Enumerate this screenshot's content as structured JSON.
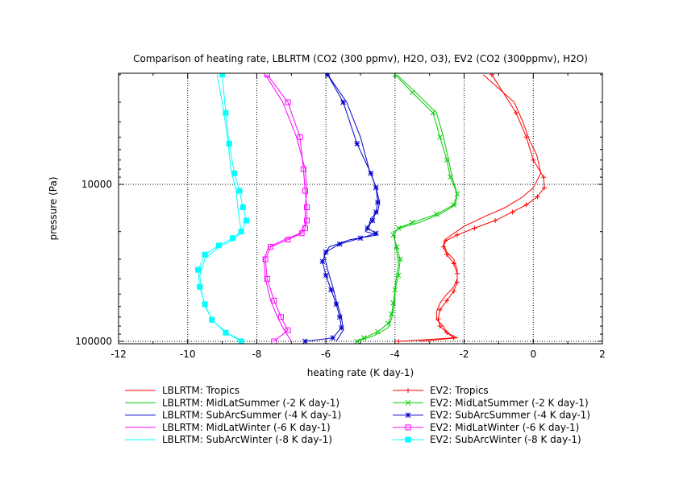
{
  "chart_data": {
    "type": "line",
    "title": "Comparison of heating rate, LBLRTM (CO2 (300 ppmv), H2O, O3), EV2 (CO2 (300ppmv), H2O)",
    "xlabel": "heating rate (K day-1)",
    "ylabel": "pressure (Pa)",
    "xlim": [
      -12,
      2
    ],
    "ylim": [
      100000,
      2000
    ],
    "y_scale": "log",
    "y_inverted": true,
    "grid": "dotted at x=-10,-8,-6,-4,-2,0 and y=10000",
    "x_ticks": [
      "-12",
      "-10",
      "-8",
      "-6",
      "-4",
      "-2",
      "0",
      "2"
    ],
    "y_ticks": [
      "10000",
      "100000"
    ],
    "legend_position": "bottom",
    "series": [
      {
        "name": "LBLRTM: Tropics",
        "color": "#ff0000",
        "marker": "none",
        "x": [
          -1.45,
          -0.55,
          -0.3,
          -0.1,
          0.1,
          0.22,
          0.0,
          -0.3,
          -0.8,
          -1.4,
          -2.0,
          -2.5,
          -2.6,
          -2.5,
          -2.3,
          -2.2,
          -2.2,
          -2.3,
          -2.5,
          -2.7,
          -2.8,
          -2.8,
          -2.6,
          -2.5,
          -2.2,
          -3.3
        ],
        "y": [
          2000,
          3000,
          4000,
          5300,
          6500,
          8500,
          10500,
          12000,
          14000,
          16000,
          18500,
          22000,
          24000,
          27000,
          30000,
          35000,
          40000,
          45000,
          50000,
          57000,
          65000,
          73000,
          80000,
          88000,
          95000,
          100000
        ]
      },
      {
        "name": "LBLRTM: MidLatSummer (-2 K day-1)",
        "color": "#00cc00",
        "marker": "none",
        "x": [
          -3.95,
          -3.4,
          -2.8,
          -2.6,
          -2.45,
          -2.35,
          -2.2,
          -2.25,
          -2.7,
          -3.3,
          -3.8,
          -4.05,
          -4.0,
          -3.95,
          -3.9,
          -3.95,
          -4.0,
          -4.0,
          -4.05,
          -4.1,
          -4.2,
          -4.6,
          -5.1
        ],
        "y": [
          2000,
          2600,
          3500,
          5000,
          7000,
          9000,
          11500,
          13500,
          15500,
          17500,
          18800,
          20000,
          23000,
          27000,
          32000,
          38000,
          45000,
          53000,
          62000,
          72000,
          82000,
          92000,
          100000
        ]
      },
      {
        "name": "LBLRTM: SubArcSummer (-4 K day-1)",
        "color": "#0000cc",
        "marker": "none",
        "x": [
          -5.95,
          -5.4,
          -5.0,
          -4.75,
          -4.55,
          -4.45,
          -4.5,
          -4.7,
          -4.75,
          -4.85,
          -4.5,
          -5.3,
          -5.9,
          -6.05,
          -5.95,
          -5.8,
          -5.7,
          -5.55,
          -5.5,
          -5.7
        ],
        "y": [
          2000,
          3000,
          5000,
          8000,
          10500,
          13000,
          15000,
          16500,
          18000,
          20000,
          21000,
          22500,
          25000,
          28000,
          35000,
          45000,
          55000,
          70000,
          85000,
          100000
        ]
      },
      {
        "name": "LBLRTM: MidLatWinter (-6 K day-1)",
        "color": "#ff00ff",
        "marker": "none",
        "x": [
          -7.75,
          -7.25,
          -6.85,
          -6.6,
          -6.55,
          -6.6,
          -6.6,
          -6.75,
          -7.2,
          -7.65,
          -7.8,
          -7.75,
          -7.6,
          -7.4,
          -7.2,
          -7.0
        ],
        "y": [
          2000,
          3000,
          5000,
          8000,
          11000,
          14000,
          18000,
          20500,
          22500,
          25000,
          30000,
          40000,
          55000,
          70000,
          85000,
          100000
        ]
      },
      {
        "name": "LBLRTM: SubArcWinter (-8 K day-1)",
        "color": "#00ffff",
        "marker": "none",
        "x": [
          -9.15,
          -9.0,
          -8.85,
          -8.75,
          -8.6,
          -8.55,
          -8.5,
          -8.45,
          -8.65,
          -9.1,
          -9.5,
          -9.65,
          -9.6,
          -9.5,
          -9.25,
          -8.8,
          -8.4
        ],
        "y": [
          2000,
          3000,
          5000,
          8000,
          11000,
          14000,
          17000,
          20000,
          22500,
          25000,
          30000,
          38000,
          48000,
          60000,
          75000,
          90000,
          100000
        ]
      },
      {
        "name": "EV2: Tropics",
        "color": "#ff0000",
        "marker": "plus",
        "x": [
          -1.2,
          -0.5,
          -0.2,
          0.0,
          0.3,
          0.32,
          0.12,
          -0.2,
          -0.6,
          -1.1,
          -1.7,
          -2.2,
          -2.55,
          -2.6,
          -2.5,
          -2.3,
          -2.2,
          -2.2,
          -2.3,
          -2.5,
          -2.7,
          -2.75,
          -2.7,
          -2.5,
          -2.3,
          -3.9
        ],
        "y": [
          2000,
          3500,
          5000,
          7000,
          9000,
          10500,
          12000,
          13500,
          15000,
          17000,
          19000,
          21000,
          23000,
          25000,
          28000,
          32000,
          37000,
          42000,
          48000,
          55000,
          63000,
          72000,
          80000,
          88000,
          95000,
          100000
        ]
      },
      {
        "name": "EV2: MidLatSummer (-2 K day-1)",
        "color": "#00cc00",
        "marker": "x",
        "x": [
          -4.0,
          -3.5,
          -2.9,
          -2.7,
          -2.5,
          -2.4,
          -2.2,
          -2.3,
          -2.8,
          -3.5,
          -3.9,
          -4.05,
          -3.95,
          -3.85,
          -3.9,
          -4.0,
          -4.05,
          -4.1,
          -4.2,
          -4.5,
          -4.9,
          -5.1
        ],
        "y": [
          2000,
          2600,
          3500,
          5000,
          7000,
          9000,
          11500,
          13500,
          15500,
          17500,
          19000,
          21000,
          25000,
          30000,
          38000,
          47000,
          57000,
          67000,
          77000,
          87000,
          95000,
          100000
        ]
      },
      {
        "name": "EV2: SubArcSummer (-4 K day-1)",
        "color": "#0000cc",
        "marker": "star",
        "x": [
          -5.95,
          -5.5,
          -5.1,
          -4.7,
          -4.55,
          -4.5,
          -4.55,
          -4.65,
          -4.8,
          -4.55,
          -5.0,
          -5.6,
          -6.0,
          -6.1,
          -6.0,
          -5.85,
          -5.7,
          -5.6,
          -5.55,
          -5.8,
          -6.6
        ],
        "y": [
          2000,
          3000,
          5500,
          8500,
          10500,
          13000,
          15000,
          17000,
          19000,
          20500,
          22000,
          24000,
          27000,
          31000,
          38000,
          47000,
          58000,
          70000,
          82000,
          95000,
          100000
        ]
      },
      {
        "name": "EV2: MidLatWinter (-6 K day-1)",
        "color": "#ff00ff",
        "marker": "square",
        "x": [
          -7.7,
          -7.1,
          -6.75,
          -6.65,
          -6.6,
          -6.55,
          -6.55,
          -6.6,
          -6.7,
          -7.1,
          -7.6,
          -7.75,
          -7.7,
          -7.5,
          -7.3,
          -7.1,
          -7.5
        ],
        "y": [
          2000,
          3000,
          5000,
          8000,
          11000,
          14000,
          17000,
          19000,
          20500,
          22500,
          25000,
          30000,
          40000,
          55000,
          70000,
          85000,
          100000
        ]
      },
      {
        "name": "EV2: SubArcWinter (-8 K day-1)",
        "color": "#00ffff",
        "marker": "filled-square",
        "x": [
          -9.0,
          -8.9,
          -8.8,
          -8.65,
          -8.5,
          -8.4,
          -8.3,
          -8.45,
          -8.7,
          -9.1,
          -9.5,
          -9.7,
          -9.65,
          -9.5,
          -9.3,
          -8.9,
          -8.45
        ],
        "y": [
          2000,
          3500,
          5500,
          8500,
          11000,
          14000,
          17000,
          20000,
          22000,
          24500,
          28000,
          35000,
          45000,
          58000,
          73000,
          88000,
          100000
        ]
      }
    ]
  }
}
